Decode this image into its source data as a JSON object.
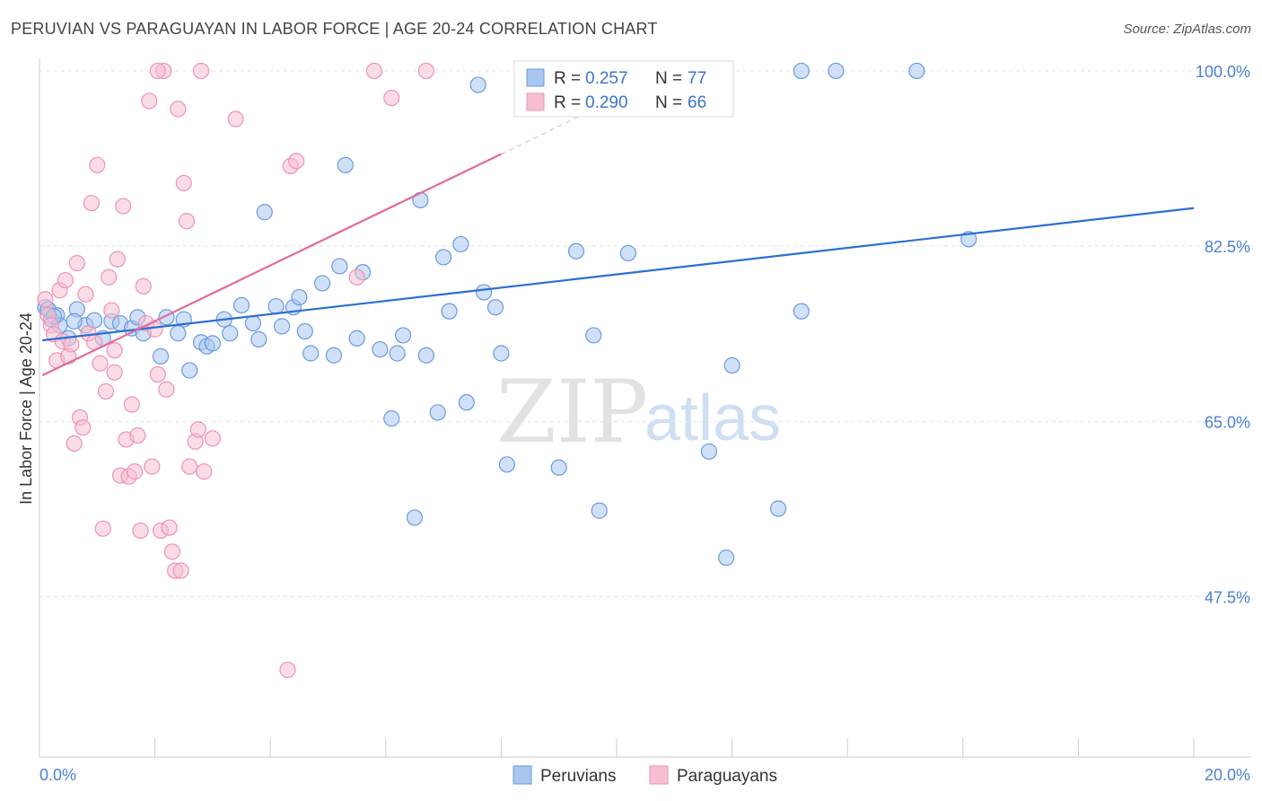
{
  "header": {
    "title": "PERUVIAN VS PARAGUAYAN IN LABOR FORCE | AGE 20-24 CORRELATION CHART",
    "source": "Source: ZipAtlas.com"
  },
  "watermark": {
    "zip": "ZIP",
    "atlas": "atlas"
  },
  "legend": {
    "rows": [
      {
        "r_label": "R =",
        "r_value": "0.257",
        "n_label": "N =",
        "n_value": "77"
      },
      {
        "r_label": "R =",
        "r_value": "0.290",
        "n_label": "N =",
        "n_value": "66"
      }
    ]
  },
  "bottom_legend": {
    "items": [
      "Peruvians",
      "Paraguayans"
    ]
  },
  "colors": {
    "peruvians_fill": "#a9c6ef",
    "peruvians_stroke": "#6a9ae0",
    "peruvians_line": "#2a6fd0",
    "paraguayans_fill": "#f6bfd1",
    "paraguayans_stroke": "#ee93b2",
    "paraguayans_line": "#e36a98"
  },
  "chart_data": {
    "type": "scatter",
    "title": "PERUVIAN VS PARAGUAYAN IN LABOR FORCE | AGE 20-24 CORRELATION CHART",
    "xlabel": "",
    "ylabel": "In Labor Force | Age 20-24",
    "x_tick_labels": [
      "0.0%",
      "20.0%"
    ],
    "y_tick_labels": [
      "100.0%",
      "82.5%",
      "65.0%",
      "47.5%"
    ],
    "y_ticks": [
      100.0,
      82.5,
      65.0,
      47.5
    ],
    "xlim": [
      0,
      20
    ],
    "ylim": [
      31.5,
      101.7
    ],
    "grid": true,
    "legend_position": "top-center",
    "series": [
      {
        "name": "Peruvians",
        "trend": {
          "x": [
            0.05,
            20.0
          ],
          "y": [
            73.1,
            86.3
          ]
        },
        "points": [
          [
            0.1,
            76.4
          ],
          [
            0.2,
            75.2
          ],
          [
            0.3,
            75.6
          ],
          [
            0.35,
            74.6
          ],
          [
            0.5,
            73.3
          ],
          [
            0.65,
            76.2
          ],
          [
            0.8,
            74.6
          ],
          [
            0.95,
            75.1
          ],
          [
            1.1,
            73.3
          ],
          [
            1.25,
            75.0
          ],
          [
            1.4,
            74.8
          ],
          [
            1.6,
            74.3
          ],
          [
            1.7,
            75.4
          ],
          [
            1.8,
            73.8
          ],
          [
            2.1,
            71.5
          ],
          [
            2.2,
            75.4
          ],
          [
            2.4,
            73.8
          ],
          [
            2.5,
            75.2
          ],
          [
            2.6,
            70.1
          ],
          [
            2.8,
            72.9
          ],
          [
            2.9,
            72.5
          ],
          [
            3.0,
            72.8
          ],
          [
            3.2,
            75.2
          ],
          [
            3.3,
            73.8
          ],
          [
            3.5,
            76.6
          ],
          [
            3.7,
            74.8
          ],
          [
            3.8,
            73.2
          ],
          [
            3.9,
            85.9
          ],
          [
            4.1,
            76.5
          ],
          [
            4.2,
            74.5
          ],
          [
            4.4,
            76.4
          ],
          [
            4.5,
            77.4
          ],
          [
            4.6,
            74.0
          ],
          [
            4.7,
            71.8
          ],
          [
            4.9,
            78.8
          ],
          [
            5.1,
            71.6
          ],
          [
            5.2,
            80.5
          ],
          [
            5.3,
            90.6
          ],
          [
            5.5,
            73.3
          ],
          [
            5.6,
            79.9
          ],
          [
            5.9,
            72.2
          ],
          [
            6.1,
            65.3
          ],
          [
            6.2,
            71.8
          ],
          [
            6.3,
            73.6
          ],
          [
            6.5,
            55.4
          ],
          [
            6.6,
            87.1
          ],
          [
            6.7,
            71.6
          ],
          [
            6.9,
            65.9
          ],
          [
            7.0,
            81.4
          ],
          [
            7.1,
            76.0
          ],
          [
            7.3,
            82.7
          ],
          [
            7.4,
            66.9
          ],
          [
            7.6,
            98.6
          ],
          [
            7.7,
            77.9
          ],
          [
            7.9,
            76.4
          ],
          [
            8.0,
            71.8
          ],
          [
            8.1,
            60.7
          ],
          [
            8.4,
            100.0
          ],
          [
            9.0,
            60.4
          ],
          [
            9.3,
            82.0
          ],
          [
            9.4,
            100.0
          ],
          [
            9.6,
            73.6
          ],
          [
            9.7,
            56.1
          ],
          [
            10.2,
            81.8
          ],
          [
            11.5,
            100.0
          ],
          [
            11.6,
            62.0
          ],
          [
            11.9,
            51.4
          ],
          [
            12.0,
            70.6
          ],
          [
            12.8,
            56.3
          ],
          [
            13.2,
            76.0
          ],
          [
            13.2,
            100.0
          ],
          [
            13.8,
            100.0
          ],
          [
            15.2,
            100.0
          ],
          [
            16.1,
            83.2
          ],
          [
            0.15,
            76.2
          ],
          [
            0.25,
            75.5
          ],
          [
            0.6,
            75.0
          ]
        ]
      },
      {
        "name": "Paraguayans",
        "trend": {
          "x": [
            0.05,
            8.0
          ],
          "y": [
            69.6,
            91.7
          ]
        },
        "points": [
          [
            0.1,
            77.2
          ],
          [
            0.15,
            75.6
          ],
          [
            0.2,
            74.6
          ],
          [
            0.25,
            73.7
          ],
          [
            0.3,
            71.1
          ],
          [
            0.35,
            78.1
          ],
          [
            0.4,
            73.0
          ],
          [
            0.45,
            79.1
          ],
          [
            0.5,
            71.5
          ],
          [
            0.6,
            62.8
          ],
          [
            0.65,
            80.8
          ],
          [
            0.7,
            65.4
          ],
          [
            0.75,
            64.4
          ],
          [
            0.8,
            77.7
          ],
          [
            0.85,
            73.8
          ],
          [
            0.9,
            86.8
          ],
          [
            1.0,
            90.6
          ],
          [
            1.05,
            70.8
          ],
          [
            1.1,
            54.3
          ],
          [
            1.15,
            68.0
          ],
          [
            1.2,
            79.4
          ],
          [
            1.25,
            76.1
          ],
          [
            1.3,
            72.1
          ],
          [
            1.35,
            81.2
          ],
          [
            1.4,
            59.6
          ],
          [
            1.45,
            86.5
          ],
          [
            1.5,
            63.2
          ],
          [
            1.55,
            59.5
          ],
          [
            1.6,
            66.7
          ],
          [
            1.65,
            60.0
          ],
          [
            1.7,
            63.6
          ],
          [
            1.75,
            54.1
          ],
          [
            1.8,
            78.5
          ],
          [
            1.85,
            74.8
          ],
          [
            1.9,
            97.0
          ],
          [
            1.95,
            60.5
          ],
          [
            2.0,
            74.2
          ],
          [
            2.05,
            69.7
          ],
          [
            2.1,
            54.1
          ],
          [
            2.15,
            100.0
          ],
          [
            2.2,
            68.2
          ],
          [
            2.25,
            54.4
          ],
          [
            2.3,
            52.0
          ],
          [
            2.35,
            50.1
          ],
          [
            2.4,
            96.2
          ],
          [
            2.45,
            50.1
          ],
          [
            2.5,
            88.8
          ],
          [
            2.55,
            85.0
          ],
          [
            2.6,
            60.5
          ],
          [
            2.7,
            63.0
          ],
          [
            2.75,
            64.2
          ],
          [
            2.8,
            100.0
          ],
          [
            2.85,
            60.0
          ],
          [
            3.0,
            63.3
          ],
          [
            3.4,
            95.2
          ],
          [
            4.3,
            40.2
          ],
          [
            4.35,
            90.5
          ],
          [
            4.45,
            91.0
          ],
          [
            5.5,
            79.4
          ],
          [
            5.8,
            100.0
          ],
          [
            6.1,
            97.3
          ],
          [
            6.7,
            100.0
          ],
          [
            0.55,
            72.7
          ],
          [
            0.95,
            72.9
          ],
          [
            1.3,
            69.9
          ],
          [
            2.05,
            100.0
          ]
        ]
      }
    ]
  }
}
